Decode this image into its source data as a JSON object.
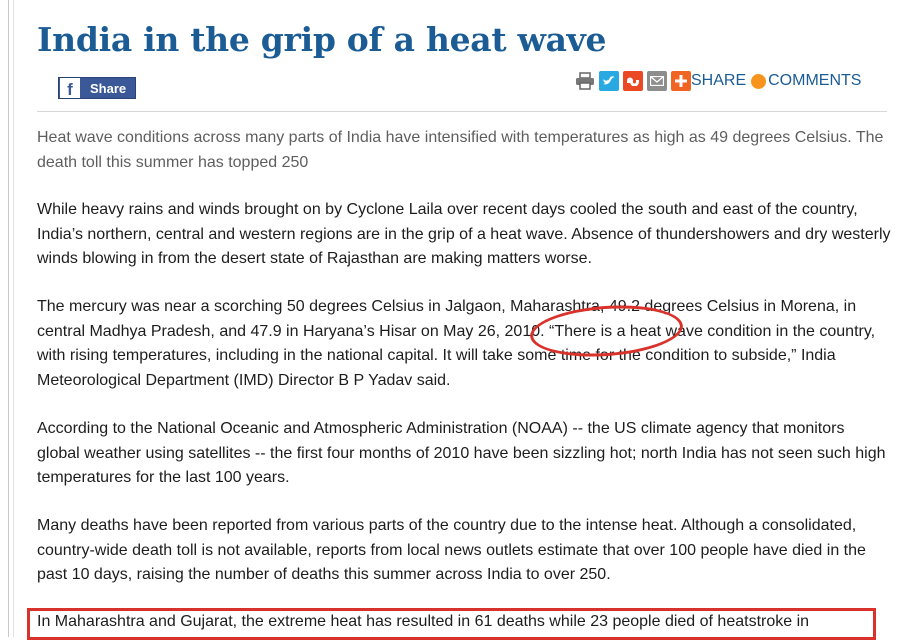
{
  "article": {
    "title": "India in the grip of a heat wave",
    "summary": "Heat wave conditions across many parts of India have intensified with temperatures as high as 49 degrees Celsius. The death toll this summer has topped 250",
    "paragraphs": [
      "While heavy rains and winds brought on by Cyclone Laila over recent days cooled the south and east of the country, India’s northern, central and western regions are in the grip of a heat wave. Absence of thundershowers and dry westerly winds blowing in from the desert state of Rajasthan are making matters worse.",
      "The mercury was near a scorching 50 degrees Celsius in Jalgaon, Maharashtra, 49.2 degrees Celsius in Morena, in central Madhya Pradesh, and 47.9 in Haryana’s Hisar on May 26, 2010. “There is a heat wave condition in the country, with rising temperatures, including in the national capital. It will take some time for the condition to subside,” India Meteorological Department (IMD) Director B P Yadav said.",
      "According to the National Oceanic and Atmospheric Administration (NOAA) -- the US climate agency that monitors global weather using satellites -- the first four months of 2010 have been sizzling hot; north India has not seen such high temperatures for the last 100 years.",
      "Many deaths have been reported from various parts of the country due to the intense heat. Although a consolidated, country-wide death toll is not available, reports from local news outlets estimate that over 100 people have died in the past 10 days, raising the number of deaths this summer across India to over 250.",
      "In Maharashtra and Gujarat, the extreme heat has resulted in 61 deaths while 23 people died of heatstroke in"
    ]
  },
  "share_bar": {
    "facebook_logo": "f",
    "facebook_label": "Share",
    "icons": [
      "print-icon",
      "twitter-icon",
      "stumbleupon-icon",
      "email-icon",
      "plus-icon"
    ],
    "share_label": "SHARE",
    "comments_label": "COMMENTS"
  },
  "colors": {
    "headline": "#1b5c95",
    "annotation": "#d9322a",
    "facebook": "#3b5998"
  }
}
